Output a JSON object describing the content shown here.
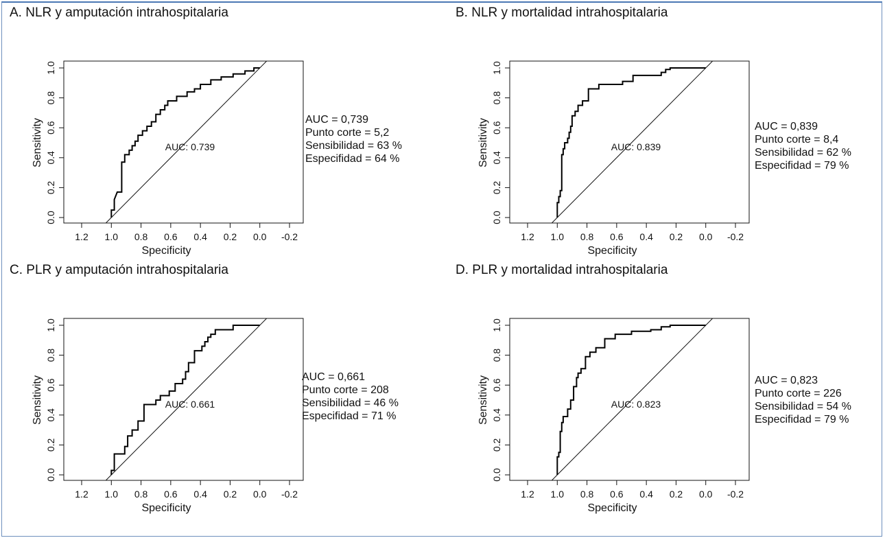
{
  "chart_data": [
    {
      "type": "line",
      "title": "A.  NLR y amputación intrahospitalaria",
      "xlabel": "Specificity",
      "ylabel": "Sensitivity",
      "x_reversed": true,
      "xlim": [
        1.2,
        -0.2
      ],
      "ylim": [
        0,
        1
      ],
      "xticks": [
        "1.2",
        "1.0",
        "0.8",
        "0.6",
        "0.4",
        "0.2",
        "0.0",
        "-0.2"
      ],
      "yticks": [
        "0.0",
        "0.2",
        "0.4",
        "0.6",
        "0.8",
        "1.0"
      ],
      "reference_line": "diagonal",
      "annotation": "AUC: 0.739",
      "stats": [
        "AUC = 0,739",
        "Punto corte = 5,2",
        "Sensibilidad = 63 %",
        "Especifidad = 64 %"
      ],
      "series": [
        {
          "specificity": [
            1.0,
            1.0,
            0.98,
            0.98,
            0.96,
            0.93,
            0.93,
            0.91,
            0.91,
            0.88,
            0.88,
            0.86,
            0.86,
            0.84,
            0.84,
            0.82,
            0.82,
            0.79,
            0.79,
            0.76,
            0.76,
            0.73,
            0.73,
            0.7,
            0.7,
            0.67,
            0.67,
            0.64,
            0.64,
            0.62,
            0.62,
            0.56,
            0.56,
            0.49,
            0.49,
            0.44,
            0.44,
            0.4,
            0.4,
            0.33,
            0.33,
            0.26,
            0.26,
            0.18,
            0.18,
            0.1,
            0.1,
            0.04,
            0.04,
            0.0
          ],
          "sensitivity": [
            0.0,
            0.05,
            0.05,
            0.12,
            0.17,
            0.17,
            0.37,
            0.37,
            0.42,
            0.42,
            0.45,
            0.45,
            0.48,
            0.48,
            0.51,
            0.51,
            0.55,
            0.55,
            0.58,
            0.58,
            0.61,
            0.61,
            0.64,
            0.64,
            0.69,
            0.69,
            0.72,
            0.72,
            0.75,
            0.75,
            0.78,
            0.78,
            0.81,
            0.81,
            0.84,
            0.84,
            0.86,
            0.86,
            0.89,
            0.89,
            0.92,
            0.92,
            0.94,
            0.94,
            0.96,
            0.96,
            0.98,
            0.98,
            1.0,
            1.0
          ]
        }
      ]
    },
    {
      "type": "line",
      "title": "B.  NLR y mortalidad intrahospitalaria",
      "xlabel": "Specificity",
      "ylabel": "Sensitivity",
      "x_reversed": true,
      "xlim": [
        1.2,
        -0.2
      ],
      "ylim": [
        0,
        1
      ],
      "xticks": [
        "1.2",
        "1.0",
        "0.8",
        "0.6",
        "0.4",
        "0.2",
        "0.0",
        "-0.2"
      ],
      "yticks": [
        "0.0",
        "0.2",
        "0.4",
        "0.6",
        "0.8",
        "1.0"
      ],
      "reference_line": "diagonal",
      "annotation": "AUC: 0.839",
      "stats": [
        "AUC = 0,839",
        "Punto corte = 8,4",
        "Sensibilidad = 62 %",
        "Especifidad = 79 %"
      ],
      "series": [
        {
          "specificity": [
            1.0,
            1.0,
            0.99,
            0.99,
            0.98,
            0.98,
            0.97,
            0.97,
            0.96,
            0.96,
            0.95,
            0.95,
            0.93,
            0.93,
            0.92,
            0.92,
            0.91,
            0.91,
            0.9,
            0.9,
            0.88,
            0.88,
            0.86,
            0.86,
            0.83,
            0.83,
            0.79,
            0.79,
            0.72,
            0.72,
            0.56,
            0.56,
            0.49,
            0.49,
            0.3,
            0.3,
            0.27,
            0.27,
            0.24,
            0.24,
            0.0
          ],
          "sensitivity": [
            0.0,
            0.1,
            0.1,
            0.14,
            0.14,
            0.18,
            0.18,
            0.42,
            0.42,
            0.46,
            0.46,
            0.5,
            0.5,
            0.53,
            0.53,
            0.57,
            0.57,
            0.61,
            0.61,
            0.68,
            0.68,
            0.71,
            0.71,
            0.75,
            0.75,
            0.78,
            0.78,
            0.86,
            0.86,
            0.89,
            0.89,
            0.91,
            0.91,
            0.95,
            0.95,
            0.97,
            0.97,
            0.99,
            0.99,
            1.0,
            1.0
          ]
        }
      ]
    },
    {
      "type": "line",
      "title": "C.  PLR y amputación intrahospitalaria",
      "xlabel": "Specificity",
      "ylabel": "Sensitivity",
      "x_reversed": true,
      "xlim": [
        1.2,
        -0.2
      ],
      "ylim": [
        0,
        1
      ],
      "xticks": [
        "1.2",
        "1.0",
        "0.8",
        "0.6",
        "0.4",
        "0.2",
        "0.0",
        "-0.2"
      ],
      "yticks": [
        "0.0",
        "0.2",
        "0.4",
        "0.6",
        "0.8",
        "1.0"
      ],
      "reference_line": "diagonal",
      "annotation": "AUC: 0.661",
      "stats": [
        "AUC = 0,661",
        "Punto corte = 208",
        "Sensibilidad = 46 %",
        "Especifidad = 71 %"
      ],
      "series": [
        {
          "specificity": [
            1.0,
            1.0,
            0.98,
            0.98,
            0.91,
            0.91,
            0.89,
            0.89,
            0.86,
            0.86,
            0.82,
            0.82,
            0.78,
            0.78,
            0.7,
            0.7,
            0.67,
            0.67,
            0.61,
            0.61,
            0.57,
            0.57,
            0.52,
            0.52,
            0.5,
            0.5,
            0.48,
            0.48,
            0.44,
            0.44,
            0.39,
            0.39,
            0.37,
            0.37,
            0.35,
            0.35,
            0.33,
            0.33,
            0.3,
            0.3,
            0.18,
            0.18,
            0.12,
            0.12,
            0.0
          ],
          "sensitivity": [
            0.0,
            0.03,
            0.03,
            0.14,
            0.14,
            0.19,
            0.19,
            0.26,
            0.26,
            0.3,
            0.3,
            0.36,
            0.36,
            0.47,
            0.47,
            0.5,
            0.5,
            0.53,
            0.53,
            0.56,
            0.56,
            0.61,
            0.61,
            0.64,
            0.64,
            0.69,
            0.69,
            0.75,
            0.75,
            0.83,
            0.83,
            0.86,
            0.86,
            0.89,
            0.89,
            0.92,
            0.92,
            0.94,
            0.94,
            0.97,
            0.97,
            1.0,
            1.0,
            1.0,
            1.0
          ]
        }
      ]
    },
    {
      "type": "line",
      "title": "D.  PLR y mortalidad intrahospitalaria",
      "xlabel": "Specificity",
      "ylabel": "Sensitivity",
      "x_reversed": true,
      "xlim": [
        1.2,
        -0.2
      ],
      "ylim": [
        0,
        1
      ],
      "xticks": [
        "1.2",
        "1.0",
        "0.8",
        "0.6",
        "0.4",
        "0.2",
        "0.0",
        "-0.2"
      ],
      "yticks": [
        "0.0",
        "0.2",
        "0.4",
        "0.6",
        "0.8",
        "1.0"
      ],
      "reference_line": "diagonal",
      "annotation": "AUC: 0.823",
      "stats": [
        "AUC = 0,823",
        "Punto corte = 226",
        "Sensibilidad = 54 %",
        "Especifidad = 79 %"
      ],
      "series": [
        {
          "specificity": [
            1.0,
            1.0,
            0.99,
            0.99,
            0.98,
            0.98,
            0.97,
            0.97,
            0.96,
            0.96,
            0.93,
            0.93,
            0.91,
            0.91,
            0.89,
            0.89,
            0.87,
            0.87,
            0.86,
            0.86,
            0.84,
            0.84,
            0.81,
            0.81,
            0.78,
            0.78,
            0.74,
            0.74,
            0.68,
            0.68,
            0.61,
            0.61,
            0.5,
            0.5,
            0.37,
            0.37,
            0.3,
            0.3,
            0.24,
            0.24,
            0.0
          ],
          "sensitivity": [
            0.0,
            0.12,
            0.12,
            0.15,
            0.15,
            0.29,
            0.29,
            0.35,
            0.35,
            0.39,
            0.39,
            0.44,
            0.44,
            0.5,
            0.5,
            0.59,
            0.59,
            0.65,
            0.65,
            0.68,
            0.68,
            0.71,
            0.71,
            0.79,
            0.79,
            0.82,
            0.82,
            0.85,
            0.85,
            0.91,
            0.91,
            0.94,
            0.94,
            0.96,
            0.96,
            0.97,
            0.97,
            0.99,
            0.99,
            1.0,
            1.0
          ]
        }
      ]
    }
  ]
}
